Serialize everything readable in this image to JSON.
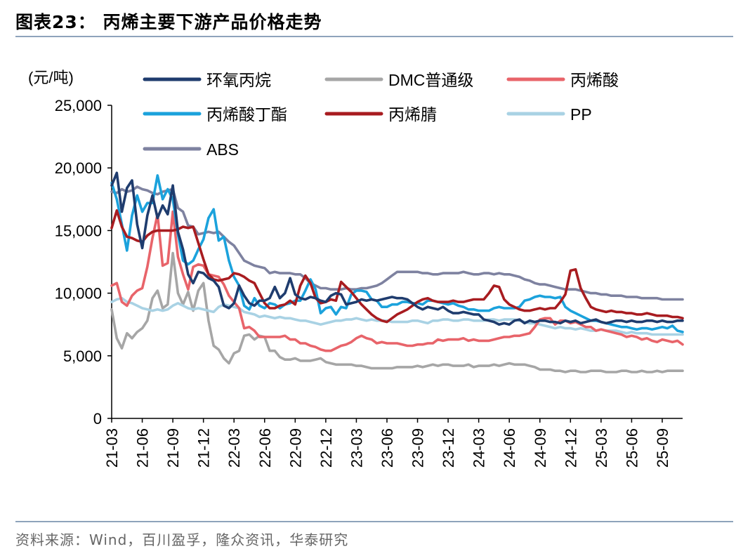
{
  "figure_title": "图表23：  丙烯主要下游产品价格走势",
  "source": "资料来源：Wind，百川盈孚，隆众资讯，华泰研究",
  "colors": {
    "rule": "#8ea3bb",
    "环氧丙烷": "#1f3c6e",
    "DMC普通级": "#a6a6a6",
    "丙烯酸": "#e8646a",
    "丙烯酸丁酯": "#1ba2dc",
    "丙烯腈": "#a81c20",
    "PP": "#a9d2e4",
    "ABS": "#7e82a0"
  },
  "chart_data": {
    "type": "line",
    "ylabel": "(元/吨)",
    "ylim": [
      0,
      25000
    ],
    "yticks": [
      0,
      5000,
      10000,
      15000,
      20000,
      25000
    ],
    "ytick_labels": [
      "0",
      "5,000",
      "10,000",
      "15,000",
      "20,000",
      "25,000"
    ],
    "xlim": [
      0,
      56
    ],
    "xtick_labels": [
      "21-03",
      "21-06",
      "21-09",
      "21-12",
      "22-03",
      "22-06",
      "22-09",
      "22-12",
      "23-03",
      "23-06",
      "23-09",
      "23-12",
      "24-03",
      "24-06",
      "24-09",
      "24-12",
      "25-03",
      "25-06",
      "25-09"
    ],
    "xtick_months": [
      0,
      3,
      6,
      9,
      12,
      15,
      18,
      21,
      24,
      27,
      30,
      33,
      36,
      39,
      42,
      45,
      48,
      51,
      54
    ],
    "x_months_from_2021_03": [
      0,
      0.5,
      1,
      1.5,
      2,
      2.5,
      3,
      3.5,
      4,
      4.5,
      5,
      5.5,
      6,
      6.5,
      7,
      7.5,
      8,
      8.5,
      9,
      9.5,
      10,
      10.5,
      11,
      11.5,
      12,
      12.5,
      13,
      13.5,
      14,
      14.5,
      15,
      15.5,
      16,
      16.5,
      17,
      17.5,
      18,
      18.5,
      19,
      19.5,
      20,
      20.5,
      21,
      21.5,
      22,
      22.5,
      23,
      23.5,
      24,
      24.5,
      25,
      25.5,
      26,
      26.5,
      27,
      27.5,
      28,
      28.5,
      29,
      29.5,
      30,
      30.5,
      31,
      31.5,
      32,
      32.5,
      33,
      33.5,
      34,
      34.5,
      35,
      35.5,
      36,
      36.5,
      37,
      37.5,
      38,
      38.5,
      39,
      39.5,
      40,
      40.5,
      41,
      41.5,
      42,
      42.5,
      43,
      43.5,
      44,
      44.5,
      45,
      45.5,
      46,
      46.5,
      47,
      47.5,
      48,
      48.5,
      49,
      49.5,
      50,
      50.5,
      51,
      51.5,
      52,
      52.5,
      53,
      53.5,
      54,
      54.5,
      55,
      55.5,
      56
    ],
    "legend_position": "top",
    "series": [
      {
        "name": "环氧丙烷",
        "values": [
          18600,
          19600,
          16500,
          18400,
          19000,
          15500,
          13600,
          16200,
          17800,
          16000,
          17000,
          16300,
          18600,
          14900,
          13500,
          11500,
          10800,
          11700,
          11600,
          11200,
          11000,
          10500,
          9000,
          8800,
          9200,
          10600,
          9800,
          9200,
          9000,
          9400,
          9400,
          9600,
          10500,
          9600,
          10000,
          11200,
          9900,
          9600,
          9500,
          9700,
          9600,
          9400,
          9300,
          9800,
          10000,
          9900,
          9100,
          9200,
          9300,
          9500,
          9400,
          9500,
          9400,
          9500,
          9600,
          9700,
          9600,
          9600,
          9500,
          9200,
          8900,
          8700,
          8900,
          8800,
          8700,
          8900,
          8600,
          8400,
          8400,
          8500,
          8400,
          8300,
          8300,
          7900,
          7800,
          7700,
          7500,
          7600,
          7500,
          7800,
          7900,
          7600,
          7800,
          7700,
          7800,
          7800,
          7700,
          7700,
          7600,
          7800,
          7700,
          7800,
          7600,
          7700,
          7800,
          7900,
          7700,
          7600,
          7700,
          7800,
          7800,
          7700,
          7800,
          7700,
          7700,
          7800,
          7800,
          7700,
          7800,
          7700,
          7700,
          7800,
          7800
        ]
      },
      {
        "name": "DMC普通级",
        "values": [
          8700,
          6400,
          5600,
          6800,
          6400,
          6900,
          7200,
          7800,
          9600,
          10200,
          8800,
          9100,
          13200,
          10000,
          9100,
          10100,
          8600,
          10200,
          10800,
          7800,
          5800,
          5500,
          4800,
          4400,
          5200,
          5400,
          6600,
          6700,
          6300,
          6600,
          6500,
          5400,
          5400,
          4900,
          4700,
          4700,
          4800,
          4600,
          4600,
          4600,
          4700,
          4800,
          4500,
          4400,
          4300,
          4300,
          4300,
          4300,
          4200,
          4200,
          4100,
          4000,
          4000,
          4000,
          4000,
          4000,
          4100,
          4100,
          4100,
          4100,
          4200,
          4100,
          4200,
          4300,
          4200,
          4300,
          4300,
          4200,
          4200,
          4200,
          4300,
          4100,
          4200,
          4200,
          4200,
          4300,
          4200,
          4300,
          4400,
          4300,
          4300,
          4300,
          4200,
          4100,
          3900,
          3900,
          3900,
          3800,
          3800,
          3700,
          3800,
          3800,
          3700,
          3700,
          3800,
          3800,
          3800,
          3700,
          3700,
          3700,
          3800,
          3800,
          3700,
          3700,
          3800,
          3700,
          3700,
          3800,
          3700,
          3800,
          3800,
          3800,
          3800
        ]
      },
      {
        "name": "丙烯酸",
        "values": [
          10600,
          10800,
          9300,
          9000,
          9800,
          10200,
          10400,
          12100,
          14400,
          16300,
          12200,
          12400,
          16500,
          12900,
          11500,
          10300,
          12100,
          12300,
          12200,
          11500,
          11400,
          11300,
          10700,
          9800,
          9300,
          8800,
          7200,
          7300,
          7000,
          6500,
          6500,
          6500,
          6500,
          6500,
          6600,
          6300,
          6300,
          6000,
          6000,
          5800,
          5700,
          5500,
          5400,
          5400,
          5600,
          5800,
          5900,
          6100,
          6400,
          6600,
          6400,
          6300,
          6000,
          6100,
          6000,
          6000,
          6000,
          5900,
          5800,
          5800,
          5900,
          5900,
          6000,
          6000,
          6300,
          6200,
          6300,
          6300,
          6300,
          6400,
          6200,
          6300,
          6200,
          6200,
          6200,
          6300,
          6400,
          6500,
          6500,
          6600,
          6600,
          6700,
          6800,
          7300,
          7900,
          8000,
          8000,
          7500,
          7800,
          7800,
          7600,
          7700,
          7500,
          7300,
          7300,
          7000,
          7100,
          7000,
          6900,
          6800,
          6700,
          6500,
          6600,
          6500,
          6300,
          6400,
          6200,
          6100,
          6300,
          6200,
          6100,
          6200,
          5900
        ]
      },
      {
        "name": "丙烯酸丁酯",
        "values": [
          18800,
          17500,
          15500,
          13400,
          16200,
          17800,
          16500,
          17200,
          17200,
          19400,
          17500,
          18300,
          17500,
          14700,
          12600,
          12300,
          12600,
          13500,
          14300,
          16000,
          16700,
          14200,
          14500,
          12600,
          11300,
          10600,
          9000,
          8700,
          9600,
          9000,
          8800,
          9200,
          9100,
          8800,
          9100,
          9200,
          9400,
          9400,
          10200,
          11100,
          10300,
          8400,
          8800,
          8900,
          8300,
          8900,
          8800,
          9900,
          10200,
          10200,
          10100,
          9500,
          9400,
          8900,
          8900,
          9100,
          9100,
          9300,
          9300,
          9200,
          9200,
          9100,
          9400,
          9400,
          9300,
          9200,
          9100,
          9200,
          9000,
          8900,
          8700,
          8700,
          8600,
          8600,
          8600,
          8800,
          8900,
          8800,
          8800,
          8800,
          8900,
          9400,
          9500,
          9700,
          9800,
          9700,
          9700,
          9600,
          9700,
          8900,
          8600,
          8400,
          8200,
          8000,
          7800,
          7800,
          7700,
          7600,
          7500,
          7400,
          7300,
          7300,
          7200,
          7100,
          7200,
          7200,
          7100,
          7200,
          7300,
          7200,
          7400,
          7000,
          6900
        ]
      },
      {
        "name": "丙烯腈",
        "values": [
          15200,
          16600,
          15300,
          14500,
          14400,
          14200,
          14100,
          14600,
          14900,
          15000,
          15000,
          15000,
          15000,
          15100,
          15300,
          15200,
          15300,
          14000,
          12700,
          11500,
          11100,
          11000,
          11100,
          11200,
          11600,
          11500,
          11300,
          11000,
          10800,
          10000,
          9200,
          8800,
          8800,
          9000,
          9100,
          9400,
          9100,
          10600,
          11400,
          10800,
          9600,
          9200,
          9300,
          9500,
          9400,
          10900,
          10500,
          10100,
          9600,
          9100,
          8700,
          8300,
          8000,
          7800,
          7700,
          8000,
          8300,
          8500,
          8700,
          9000,
          9300,
          9500,
          9600,
          9400,
          9300,
          9300,
          9300,
          9400,
          9300,
          9300,
          9400,
          9500,
          9500,
          9500,
          10000,
          10600,
          10500,
          9500,
          9100,
          8900,
          8700,
          8600,
          8600,
          8700,
          8800,
          8700,
          8800,
          8800,
          9300,
          9900,
          11800,
          11900,
          10400,
          9600,
          8900,
          8700,
          8600,
          8500,
          8600,
          8500,
          8500,
          8400,
          8400,
          8300,
          8300,
          8400,
          8300,
          8200,
          8200,
          8200,
          8100,
          8100,
          8000
        ]
      },
      {
        "name": "PP",
        "values": [
          9300,
          9500,
          9600,
          9300,
          9200,
          9000,
          8800,
          8700,
          8600,
          8700,
          8600,
          8700,
          9000,
          9200,
          9000,
          8800,
          8700,
          8800,
          8700,
          8600,
          8500,
          8900,
          9100,
          9000,
          8900,
          8800,
          8500,
          8400,
          8300,
          8100,
          8200,
          8100,
          8000,
          8100,
          8000,
          8000,
          7900,
          7800,
          7800,
          7700,
          7600,
          7500,
          7600,
          7700,
          7800,
          7800,
          7900,
          7900,
          8000,
          7900,
          7800,
          7900,
          7800,
          7800,
          7800,
          7700,
          7700,
          7700,
          7700,
          7800,
          7800,
          7700,
          7600,
          7800,
          7800,
          7900,
          7900,
          7800,
          7800,
          7900,
          7900,
          7800,
          7800,
          7800,
          7900,
          7900,
          7800,
          7900,
          7900,
          7900,
          7800,
          7700,
          7600,
          7600,
          7500,
          7400,
          7300,
          7200,
          7300,
          7200,
          7200,
          7100,
          7200,
          7100,
          7000,
          7000,
          7100,
          7000,
          7000,
          7000,
          6900,
          6800,
          6900,
          6800,
          6800,
          6800,
          6700,
          6700,
          6700,
          6700,
          6700,
          6700,
          6700
        ]
      },
      {
        "name": "ABS",
        "values": [
          18100,
          18000,
          18300,
          18100,
          18200,
          18500,
          18300,
          18200,
          18000,
          17900,
          18100,
          18200,
          18300,
          16800,
          16500,
          15400,
          15300,
          14700,
          14800,
          14900,
          14800,
          14900,
          14500,
          14100,
          13800,
          13200,
          12600,
          12400,
          12200,
          12100,
          12000,
          11600,
          11700,
          11600,
          11600,
          11600,
          11500,
          11500,
          11200,
          10800,
          10600,
          10400,
          10400,
          10300,
          10300,
          10300,
          10400,
          10300,
          10300,
          10400,
          10400,
          10500,
          10600,
          10800,
          11100,
          11400,
          11700,
          11700,
          11700,
          11700,
          11700,
          11600,
          11600,
          11500,
          11500,
          11600,
          11600,
          11600,
          11600,
          11700,
          11600,
          11500,
          11500,
          11600,
          11600,
          11500,
          11600,
          11500,
          11500,
          11400,
          11300,
          11100,
          11000,
          10800,
          10700,
          10700,
          10600,
          10500,
          10400,
          10300,
          10300,
          10300,
          10200,
          10100,
          10000,
          10000,
          9900,
          9900,
          9800,
          9800,
          9800,
          9700,
          9700,
          9700,
          9600,
          9600,
          9600,
          9600,
          9500,
          9500,
          9500,
          9500,
          9500
        ]
      }
    ]
  }
}
